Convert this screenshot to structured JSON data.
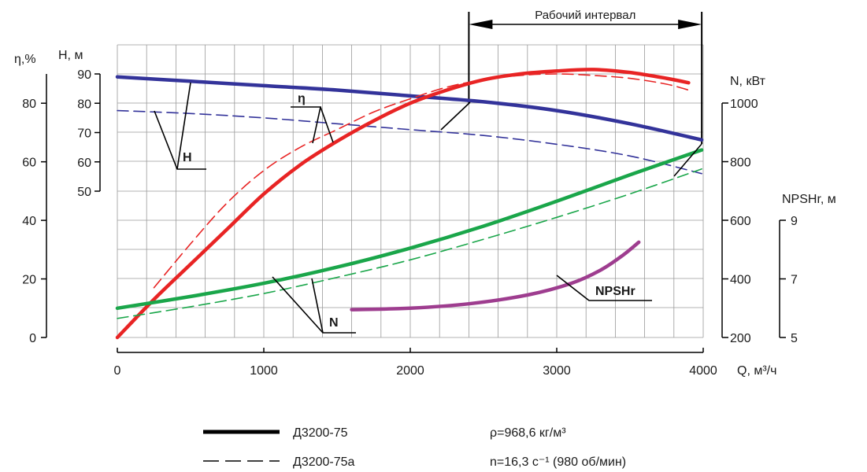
{
  "chart_data": {
    "type": "line",
    "working_range_label": "Рабочий интервал",
    "working_range": [
      2400,
      3990
    ],
    "x_axis": {
      "label": "Q, м³/ч",
      "range": [
        0,
        4000
      ],
      "ticks": [
        0,
        1000,
        2000,
        3000,
        4000
      ]
    },
    "y_axes": {
      "eta": {
        "label": "η,%",
        "range": [
          0,
          90
        ],
        "ticks": [
          0,
          20,
          40,
          60,
          80
        ]
      },
      "head": {
        "label": "H, м",
        "range": [
          50,
          90
        ],
        "ticks": [
          50,
          60,
          70,
          80,
          90
        ]
      },
      "power": {
        "label": "N, кВт",
        "range": [
          200,
          1000
        ],
        "ticks": [
          200,
          400,
          600,
          800,
          1000
        ]
      },
      "npshr": {
        "label": "NPSHr, м",
        "range": [
          5,
          9
        ],
        "ticks": [
          5,
          7,
          9
        ]
      }
    },
    "curve_labels": {
      "head": "H",
      "eta": "η",
      "power": "N",
      "npshr": "NPSHr"
    },
    "series": [
      {
        "name": "Д3200-75",
        "quantity": "head",
        "axis": "head",
        "style": "solid",
        "color": "#33339a",
        "x": [
          0,
          500,
          1000,
          1500,
          2000,
          2500,
          3000,
          3500,
          3990
        ],
        "y": [
          89,
          87.5,
          86,
          84.5,
          82.5,
          80.5,
          77.5,
          73,
          67.5
        ]
      },
      {
        "name": "Д3200-75а",
        "quantity": "head",
        "axis": "head",
        "style": "dashed",
        "color": "#33339a",
        "x": [
          0,
          500,
          1000,
          1500,
          2000,
          2500,
          3000,
          3500,
          3990
        ],
        "y": [
          77.5,
          76.5,
          75,
          73,
          71,
          69,
          66,
          62,
          56
        ]
      },
      {
        "name": "Д3200-75",
        "quantity": "eta",
        "axis": "eta",
        "style": "solid",
        "color": "#e82424",
        "x": [
          0,
          250,
          500,
          750,
          1000,
          1250,
          1500,
          1750,
          2000,
          2250,
          2500,
          2750,
          3000,
          3250,
          3500,
          3750,
          3900
        ],
        "y": [
          0,
          13,
          25,
          37,
          49,
          59,
          67,
          74,
          80,
          84.5,
          88,
          90,
          91,
          91.5,
          90.5,
          88.5,
          87
        ]
      },
      {
        "name": "Д3200-75а",
        "quantity": "eta",
        "axis": "eta",
        "style": "dashed",
        "color": "#e82424",
        "x": [
          250,
          500,
          750,
          1000,
          1250,
          1500,
          1750,
          2000,
          2250,
          2500,
          2750,
          3000,
          3250,
          3500,
          3750,
          3900
        ],
        "y": [
          17,
          32,
          46,
          57,
          65,
          71,
          77,
          81.5,
          85.5,
          88,
          89.5,
          90,
          89.5,
          88.5,
          86.5,
          84.5
        ]
      },
      {
        "name": "Д3200-75",
        "quantity": "power",
        "axis": "power",
        "style": "solid",
        "color": "#1aa64a",
        "x": [
          0,
          500,
          1000,
          1500,
          2000,
          2500,
          3000,
          3500,
          3990
        ],
        "y": [
          300,
          340,
          385,
          440,
          505,
          580,
          665,
          755,
          840
        ]
      },
      {
        "name": "Д3200-75а",
        "quantity": "power",
        "axis": "power",
        "style": "dashed",
        "color": "#1aa64a",
        "x": [
          0,
          500,
          1000,
          1500,
          2000,
          2500,
          3000,
          3500,
          3990
        ],
        "y": [
          265,
          305,
          350,
          405,
          465,
          535,
          610,
          690,
          775
        ]
      },
      {
        "name": "Д3200-75",
        "quantity": "npshr",
        "axis": "npshr",
        "style": "solid",
        "color": "#9e3d8f",
        "x": [
          1600,
          2000,
          2400,
          2800,
          3100,
          3300,
          3450,
          3560
        ],
        "y": [
          5.95,
          6.0,
          6.15,
          6.45,
          6.85,
          7.3,
          7.8,
          8.25
        ]
      }
    ]
  },
  "legend": [
    {
      "style": "solid",
      "label": "Д3200-75"
    },
    {
      "style": "dashed",
      "label": "Д3200-75а"
    }
  ],
  "notes": {
    "density": "ρ=968,6 кг/м³",
    "speed": "n=16,3 с⁻¹ (980 об/мин)"
  }
}
